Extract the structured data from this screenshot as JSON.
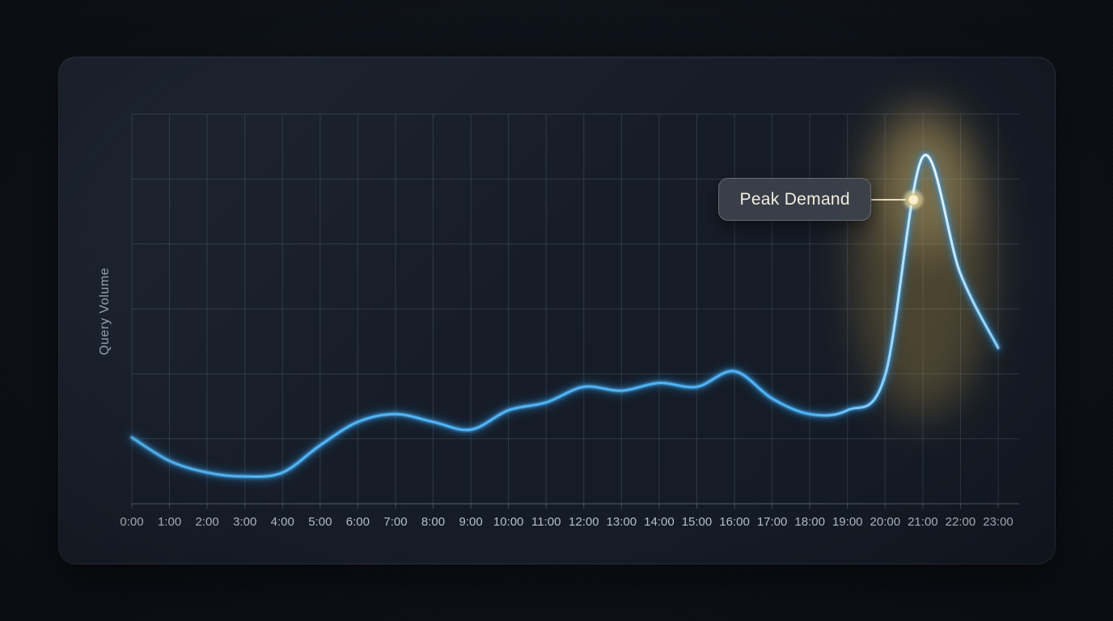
{
  "chart_data": {
    "type": "line",
    "title": "",
    "xlabel": "",
    "ylabel": "Query Volume",
    "x": [
      "0:00",
      "1:00",
      "2:00",
      "3:00",
      "4:00",
      "5:00",
      "6:00",
      "7:00",
      "8:00",
      "9:00",
      "10:00",
      "11:00",
      "12:00",
      "13:00",
      "14:00",
      "15:00",
      "16:00",
      "17:00",
      "18:00",
      "19:00",
      "20:00",
      "21:00",
      "22:00",
      "23:00"
    ],
    "series": [
      {
        "name": "Query Volume",
        "values": [
          17,
          11,
          8,
          7,
          8,
          15,
          21,
          23,
          21,
          19,
          24,
          26,
          30,
          29,
          31,
          30,
          34,
          27,
          23,
          24,
          33,
          89,
          59,
          40
        ]
      }
    ],
    "ylim": [
      0,
      100
    ],
    "grid": true,
    "legend": false,
    "annotations": [
      {
        "label": "Peak Demand",
        "x": "20:45",
        "hour": 20.75,
        "value": 78
      }
    ]
  },
  "colors": {
    "background": "#0d1118",
    "card": "#171d28",
    "grid_line": "rgba(150,166,192,0.20)",
    "axis_line": "rgba(150,166,192,0.35)",
    "line": "#46aef3",
    "line_glow": "#1f8cdc",
    "line_peak_highlight": "#eef8ff",
    "peak_glow_soft": "rgba(196,158,70,0.30)",
    "peak_glow_bright": "rgba(240,210,135,0.30)",
    "marker": "#f9efcd",
    "marker_ring": "rgba(214,184,112,0.9)",
    "marker_glow": "rgba(250,232,170,0.55)",
    "connector": "#e8ddbb",
    "tooltip_bg": "rgba(59,65,74,0.94)",
    "tooltip_border": "#656c76",
    "tooltip_text": "#f3eedd",
    "axis_text": "#b6bfca",
    "y_label_text": "#99a3b2"
  }
}
